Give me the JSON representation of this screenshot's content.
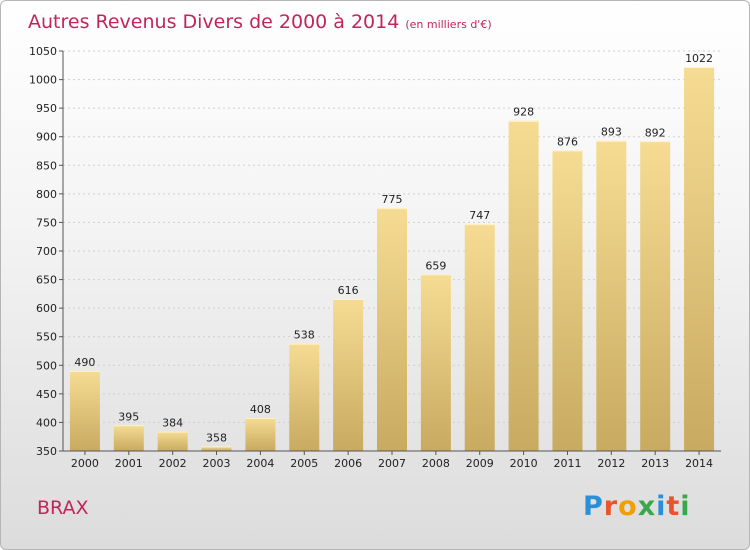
{
  "header": {
    "title": "Autres Revenus Divers de 2000 à 2014",
    "subtitle": "(en milliers d'€)"
  },
  "footer": {
    "commune": "BRAX",
    "logo": {
      "letters": [
        "P",
        "r",
        "o",
        "x",
        "i",
        "t",
        "i"
      ],
      "colors": [
        "#2a8fd6",
        "#e8542c",
        "#f0a000",
        "#3aa84a",
        "#2a8fd6",
        "#e8542c",
        "#3aa84a"
      ]
    }
  },
  "colors": {
    "bar_top": "#f6dc93",
    "bar_bottom": "#c8aa60",
    "title": "#c2255c"
  },
  "chart_data": {
    "type": "bar",
    "categories": [
      "2000",
      "2001",
      "2002",
      "2003",
      "2004",
      "2005",
      "2006",
      "2007",
      "2008",
      "2009",
      "2010",
      "2011",
      "2012",
      "2013",
      "2014"
    ],
    "values": [
      490,
      395,
      384,
      358,
      408,
      538,
      616,
      775,
      659,
      747,
      928,
      876,
      893,
      892,
      1022
    ],
    "ylim": [
      350,
      1050
    ],
    "yticks": [
      350,
      400,
      450,
      500,
      550,
      600,
      650,
      700,
      750,
      800,
      850,
      900,
      950,
      1000,
      1050
    ],
    "grid": true
  }
}
